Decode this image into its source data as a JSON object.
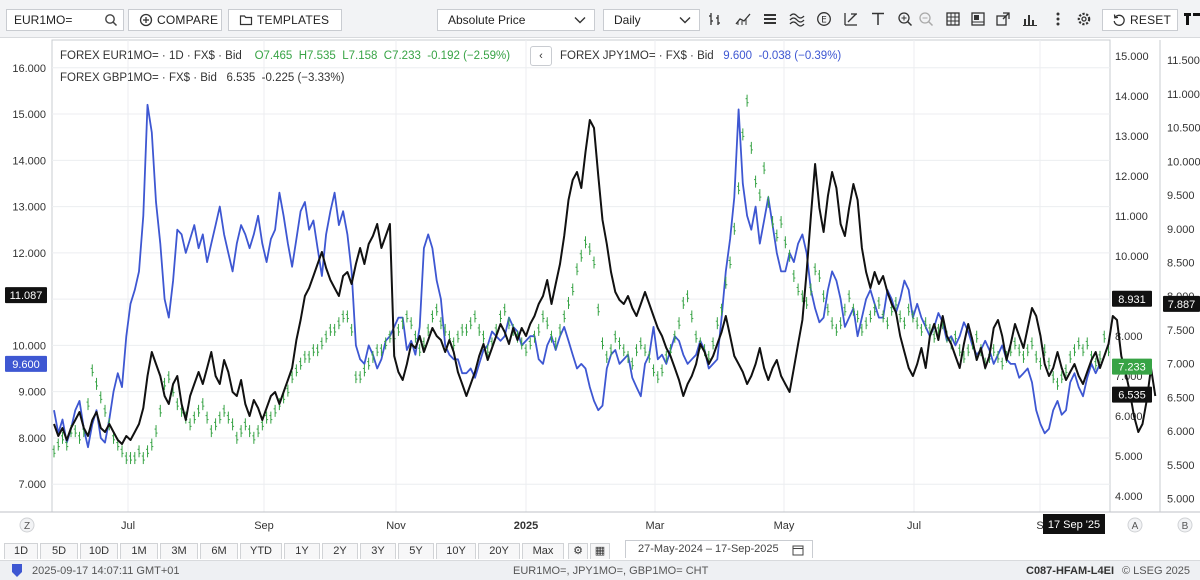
{
  "toolbar": {
    "ric_input": "EUR1MO=",
    "compare_label": "COMPARE",
    "templates_label": "TEMPLATES",
    "price_type": "Absolute Price",
    "period": "Daily",
    "reset_label": "RESET",
    "tools": [
      "bar-type-icon",
      "indicators-icon",
      "list-icon",
      "waves-icon",
      "events-icon",
      "draw-tools-icon",
      "text-tool-icon",
      "zoom-in-icon",
      "zoom-out-icon",
      "table-icon",
      "chart-layout-icon",
      "export-icon",
      "stats-icon",
      "more-vertical-icon",
      "settings-icon"
    ]
  },
  "legend": {
    "eur": {
      "label": "FOREX EUR1MO= · 1D · FX$ · Bid",
      "o": "O7.465",
      "h": "H7.535",
      "l": "L7.158",
      "c": "C7.233",
      "chg": "-0.192 (−2.59%)"
    },
    "gbp": {
      "label": "FOREX GBP1MO= · FX$ · Bid",
      "value": "6.535",
      "chg": "-0.225 (−3.33%)"
    },
    "jpy": {
      "label": "FOREX JPY1MO= · FX$ · Bid",
      "value": "9.600",
      "chg": "-0.038 (−0.39%)"
    },
    "arrow": "‹"
  },
  "colors": {
    "eur": "#37a345",
    "jpy": "#3e57d2",
    "gbp": "#111111",
    "grid": "#eceef0"
  },
  "chart_data": {
    "type": "line",
    "x_ticks": [
      "Jul",
      "Sep",
      "Nov",
      "2025",
      "Mar",
      "May",
      "Jul",
      "S"
    ],
    "x_range": [
      "27-May-2024",
      "17-Sep-2025"
    ],
    "crosshair_date": "17 Sep '25",
    "axes": {
      "left": {
        "id": "jpy",
        "ticks": [
          "16.000",
          "15.000",
          "14.000",
          "13.000",
          "12.000",
          "11.000",
          "10.000",
          "9.000",
          "8.000",
          "7.000"
        ],
        "range": [
          6.4,
          16.6
        ],
        "markers": [
          {
            "label": "11.087",
            "value": 11.087,
            "color": "#111111"
          },
          {
            "label": "9.600",
            "value": 9.6,
            "color": "#3e57d2"
          }
        ]
      },
      "right1": {
        "id": "gbp",
        "ticks": [
          "15.000",
          "14.000",
          "13.000",
          "12.000",
          "11.000",
          "10.000",
          "9.000",
          "8.000",
          "7.000",
          "6.000",
          "5.000",
          "4.000"
        ],
        "range": [
          3.6,
          15.4
        ],
        "markers": [
          {
            "label": "8.931",
            "value": 8.931,
            "color": "#111111"
          },
          {
            "label": "7.233",
            "value": 7.233,
            "color": "#37a345"
          },
          {
            "label": "6.535",
            "value": 6.535,
            "color": "#111111"
          }
        ]
      },
      "right2": {
        "id": "eur",
        "ticks": [
          "11.500",
          "11.000",
          "10.500",
          "10.000",
          "9.500",
          "9.000",
          "8.500",
          "8.000",
          "7.500",
          "7.000",
          "6.500",
          "6.000",
          "5.500",
          "5.000"
        ],
        "range": [
          4.8,
          11.8
        ],
        "markers": [
          {
            "label": "7.887",
            "value": 7.887,
            "color": "#111111"
          }
        ]
      }
    },
    "series": [
      {
        "id": "jpy",
        "name": "JPY1MO=",
        "axis": "left",
        "style": "line",
        "values": [
          8.6,
          8.1,
          8.4,
          7.9,
          8.2,
          8.6,
          8.8,
          8.2,
          7.8,
          8.3,
          8.6,
          8.0,
          7.9,
          8.4,
          9.0,
          9.4,
          9.1,
          10.2,
          10.9,
          11.2,
          11.6,
          12.8,
          15.2,
          14.6,
          13.1,
          12.2,
          11.0,
          10.6,
          11.4,
          12.5,
          12.4,
          12.0,
          12.3,
          12.6,
          12.1,
          12.4,
          11.8,
          12.2,
          12.6,
          13.0,
          12.4,
          12.0,
          11.6,
          12.2,
          12.6,
          12.4,
          12.1,
          12.4,
          12.8,
          12.2,
          11.8,
          12.3,
          12.5,
          13.3,
          12.8,
          12.2,
          11.7,
          12.3,
          12.9,
          13.1,
          12.5,
          12.7,
          12.1,
          11.5,
          12.4,
          12.9,
          13.3,
          12.6,
          12.9,
          12.4,
          11.6,
          10.0,
          9.7,
          9.6,
          10.0,
          9.8,
          9.5,
          9.7,
          10.1,
          10.2,
          10.4,
          10.6,
          10.6,
          9.9,
          10.1,
          9.8,
          10.4,
          12.1,
          12.4,
          12.1,
          11.4,
          11.0,
          10.0,
          9.8,
          9.7,
          9.7,
          9.4,
          9.4,
          9.5,
          9.3,
          9.6,
          9.9,
          10.0,
          10.3,
          10.2,
          10.1,
          10.2,
          10.6,
          10.4,
          10.3,
          10.0,
          10.1,
          10.2,
          10.2,
          9.7,
          9.6,
          10.0,
          10.2,
          9.9,
          10.2,
          10.4,
          10.1,
          9.8,
          9.5,
          9.6,
          9.5,
          9.1,
          8.8,
          8.6,
          8.7,
          9.5,
          9.8,
          9.9,
          9.6,
          9.7,
          9.8,
          9.3,
          9.1,
          8.9,
          9.6,
          9.8,
          10.4,
          9.7,
          9.8,
          9.6,
          9.9,
          10.2,
          10.1,
          9.8,
          9.6,
          9.7,
          9.8,
          10.1,
          9.9,
          9.5,
          9.6,
          9.7,
          10.6,
          11.6,
          12.3,
          13.2,
          15.1,
          13.5,
          12.8,
          12.5,
          13.0,
          12.2,
          12.7,
          13.2,
          12.6,
          12.0,
          11.6,
          11.6,
          12.0,
          11.8,
          12.2,
          12.4,
          12.0,
          11.2,
          10.8,
          10.5,
          10.6,
          11.2,
          11.6,
          11.4,
          11.0,
          10.4,
          10.6,
          10.8,
          10.2,
          10.6,
          11.0,
          11.2,
          10.9,
          10.6,
          10.6,
          11.2,
          11.0,
          10.7,
          11.0,
          11.4,
          11.2,
          10.6,
          10.9,
          10.6,
          10.4,
          10.2,
          10.4,
          10.7,
          10.5,
          10.1,
          10.2,
          10.0,
          10.2,
          10.5,
          10.3,
          10.0,
          9.8,
          9.9,
          10.1,
          9.9,
          9.6,
          9.8,
          10.0,
          9.7,
          9.6,
          9.6,
          9.3,
          9.4,
          9.5,
          9.2,
          8.6,
          8.3,
          8.1,
          8.2,
          8.6,
          8.8,
          8.5,
          8.6,
          9.2,
          9.4,
          9.1,
          8.9,
          9.3,
          9.6,
          9.4,
          9.6
        ]
      },
      {
        "id": "eur",
        "name": "EUR1MO=",
        "axis": "right2",
        "style": "bars",
        "values": [
          5.7,
          5.8,
          5.9,
          5.8,
          6.0,
          6.0,
          5.9,
          6.0,
          6.4,
          6.9,
          6.7,
          6.5,
          6.3,
          6.1,
          5.9,
          5.8,
          5.7,
          5.6,
          5.6,
          5.6,
          5.7,
          5.6,
          5.7,
          5.8,
          6.0,
          6.3,
          6.7,
          6.8,
          6.6,
          6.4,
          6.3,
          6.2,
          6.1,
          6.2,
          6.3,
          6.4,
          6.2,
          6.0,
          6.1,
          6.2,
          6.3,
          6.2,
          6.1,
          5.9,
          6.0,
          6.1,
          6.0,
          5.9,
          6.0,
          6.1,
          6.2,
          6.2,
          6.3,
          6.4,
          6.5,
          6.6,
          6.8,
          6.9,
          7.0,
          7.1,
          7.1,
          7.2,
          7.2,
          7.3,
          7.4,
          7.5,
          7.5,
          7.6,
          7.7,
          7.7,
          7.5,
          6.8,
          6.8,
          6.9,
          7.0,
          7.1,
          7.2,
          7.2,
          7.3,
          7.4,
          7.4,
          7.5,
          7.6,
          7.7,
          7.6,
          7.4,
          7.2,
          7.3,
          7.5,
          7.7,
          7.8,
          7.6,
          7.5,
          7.4,
          7.3,
          7.4,
          7.5,
          7.5,
          7.6,
          7.7,
          7.5,
          7.4,
          7.2,
          7.3,
          7.5,
          7.7,
          7.8,
          7.6,
          7.5,
          7.4,
          7.3,
          7.2,
          7.3,
          7.4,
          7.5,
          7.7,
          7.6,
          7.4,
          7.3,
          7.5,
          7.7,
          7.9,
          8.1,
          8.4,
          8.6,
          8.8,
          8.7,
          8.5,
          7.8,
          7.3,
          7.1,
          7.2,
          7.4,
          7.3,
          7.2,
          7.1,
          7.0,
          7.2,
          7.3,
          7.2,
          7.1,
          6.9,
          6.8,
          6.9,
          7.1,
          7.2,
          7.4,
          7.6,
          7.9,
          8.0,
          7.7,
          7.4,
          7.3,
          7.2,
          7.1,
          7.3,
          7.6,
          7.8,
          8.2,
          8.5,
          9.0,
          9.6,
          10.4,
          10.9,
          10.2,
          9.7,
          9.5,
          9.9,
          9.4,
          9.1,
          8.9,
          9.1,
          8.8,
          8.6,
          8.3,
          8.1,
          8.0,
          7.9,
          8.1,
          8.4,
          8.3,
          8.0,
          7.8,
          7.6,
          7.5,
          7.6,
          7.8,
          8.0,
          7.8,
          7.7,
          7.5,
          7.6,
          7.7,
          7.8,
          7.9,
          7.7,
          7.6,
          7.8,
          7.9,
          7.7,
          7.6,
          7.8,
          7.7,
          7.6,
          7.5,
          7.6,
          7.5,
          7.4,
          7.5,
          7.6,
          7.4,
          7.3,
          7.4,
          7.2,
          7.1,
          7.2,
          7.3,
          7.4,
          7.2,
          7.0,
          7.1,
          7.2,
          7.1,
          7.0,
          7.1,
          7.2,
          7.3,
          7.2,
          7.1,
          7.2,
          7.3,
          7.1,
          7.0,
          7.2,
          7.0,
          6.8,
          6.7,
          6.8,
          6.9,
          7.1,
          7.2,
          7.3,
          7.2,
          7.3,
          7.1,
          7.0,
          7.1,
          7.4,
          7.2
        ]
      },
      {
        "id": "gbp",
        "name": "GBP1MO=",
        "axis": "right1",
        "style": "line",
        "values": [
          5.8,
          5.5,
          5.7,
          5.4,
          5.7,
          5.9,
          6.1,
          5.7,
          5.5,
          5.9,
          6.1,
          5.7,
          5.6,
          5.8,
          5.6,
          5.4,
          5.3,
          5.5,
          5.4,
          5.6,
          5.8,
          6.2,
          7.0,
          7.6,
          7.3,
          7.0,
          6.5,
          6.3,
          6.8,
          7.0,
          6.3,
          5.9,
          6.5,
          6.8,
          7.1,
          6.8,
          7.2,
          7.6,
          7.0,
          6.8,
          7.4,
          7.1,
          6.6,
          6.5,
          6.9,
          6.3,
          6.0,
          6.4,
          6.2,
          5.9,
          6.2,
          6.5,
          6.6,
          6.3,
          6.6,
          6.9,
          7.2,
          7.9,
          8.4,
          9.0,
          9.2,
          9.5,
          9.8,
          10.1,
          9.7,
          9.4,
          9.2,
          9.0,
          9.5,
          9.6,
          9.3,
          9.8,
          10.2,
          9.8,
          10.3,
          10.5,
          10.8,
          10.2,
          10.5,
          10.8,
          7.5,
          7.1,
          6.9,
          7.3,
          7.8,
          7.7,
          8.0,
          7.6,
          7.9,
          8.2,
          8.0,
          7.9,
          7.6,
          7.9,
          7.6,
          7.1,
          6.8,
          6.5,
          6.8,
          7.1,
          7.5,
          7.8,
          7.4,
          7.7,
          8.0,
          8.3,
          8.1,
          7.8,
          8.2,
          7.9,
          8.2,
          8.0,
          8.3,
          8.5,
          8.8,
          9.0,
          9.4,
          8.8,
          9.3,
          9.8,
          10.5,
          11.4,
          11.9,
          12.1,
          11.7,
          12.6,
          13.4,
          13.2,
          12.0,
          10.9,
          10.3,
          9.6,
          9.1,
          8.9,
          8.8,
          9.0,
          8.7,
          8.5,
          8.8,
          9.1,
          8.8,
          8.5,
          8.2,
          8.0,
          7.7,
          7.5,
          7.2,
          6.9,
          6.5,
          6.8,
          7.0,
          7.3,
          7.8,
          7.6,
          7.3,
          7.5,
          7.8,
          8.1,
          8.5,
          8.0,
          7.5,
          7.3,
          7.1,
          6.8,
          7.0,
          7.3,
          7.7,
          7.2,
          6.9,
          7.2,
          7.4,
          7.0,
          6.8,
          6.6,
          7.2,
          7.8,
          8.4,
          9.6,
          11.0,
          12.3,
          11.2,
          10.6,
          11.5,
          12.1,
          11.7,
          10.8,
          10.5,
          11.2,
          11.8,
          11.4,
          10.2,
          9.6,
          9.2,
          9.6,
          9.3,
          9.5,
          9.1,
          8.8,
          8.6,
          8.0,
          7.6,
          7.2,
          7.0,
          7.3,
          7.7,
          7.2,
          8.0,
          8.3,
          7.9,
          8.5,
          8.0,
          7.8,
          7.5,
          7.2,
          7.8,
          8.3,
          7.9,
          7.4,
          7.7,
          7.2,
          7.5,
          8.2,
          8.4,
          8.0,
          7.4,
          7.8,
          8.3,
          8.0,
          7.7,
          8.2,
          8.7,
          8.5,
          8.0,
          7.3,
          7.0,
          7.2,
          7.6,
          7.2,
          6.9,
          7.1,
          7.3,
          7.0,
          6.8,
          7.1,
          7.4,
          7.6,
          7.2,
          7.5,
          7.8,
          8.5,
          8.4,
          7.5,
          7.1,
          6.6,
          6.0,
          5.6,
          5.8,
          6.4,
          7.2,
          6.5
        ]
      }
    ],
    "y_corner_labels": {
      "left": "Z",
      "right1": "A",
      "right2": "B"
    }
  },
  "range_buttons": [
    "1D",
    "5D",
    "10D",
    "1M",
    "3M",
    "6M",
    "YTD",
    "1Y",
    "2Y",
    "3Y",
    "5Y",
    "10Y",
    "20Y",
    "Max"
  ],
  "date_range": "27-May-2024 – 17-Sep-2025",
  "status": {
    "timestamp": "2025-09-17 14:07:11 GMT+01",
    "rics": "EUR1MO=, JPY1MO=, GBP1MO= CHT",
    "app_id": "C087-HFAM-L4EI",
    "copyright": "© LSEG 2025"
  }
}
